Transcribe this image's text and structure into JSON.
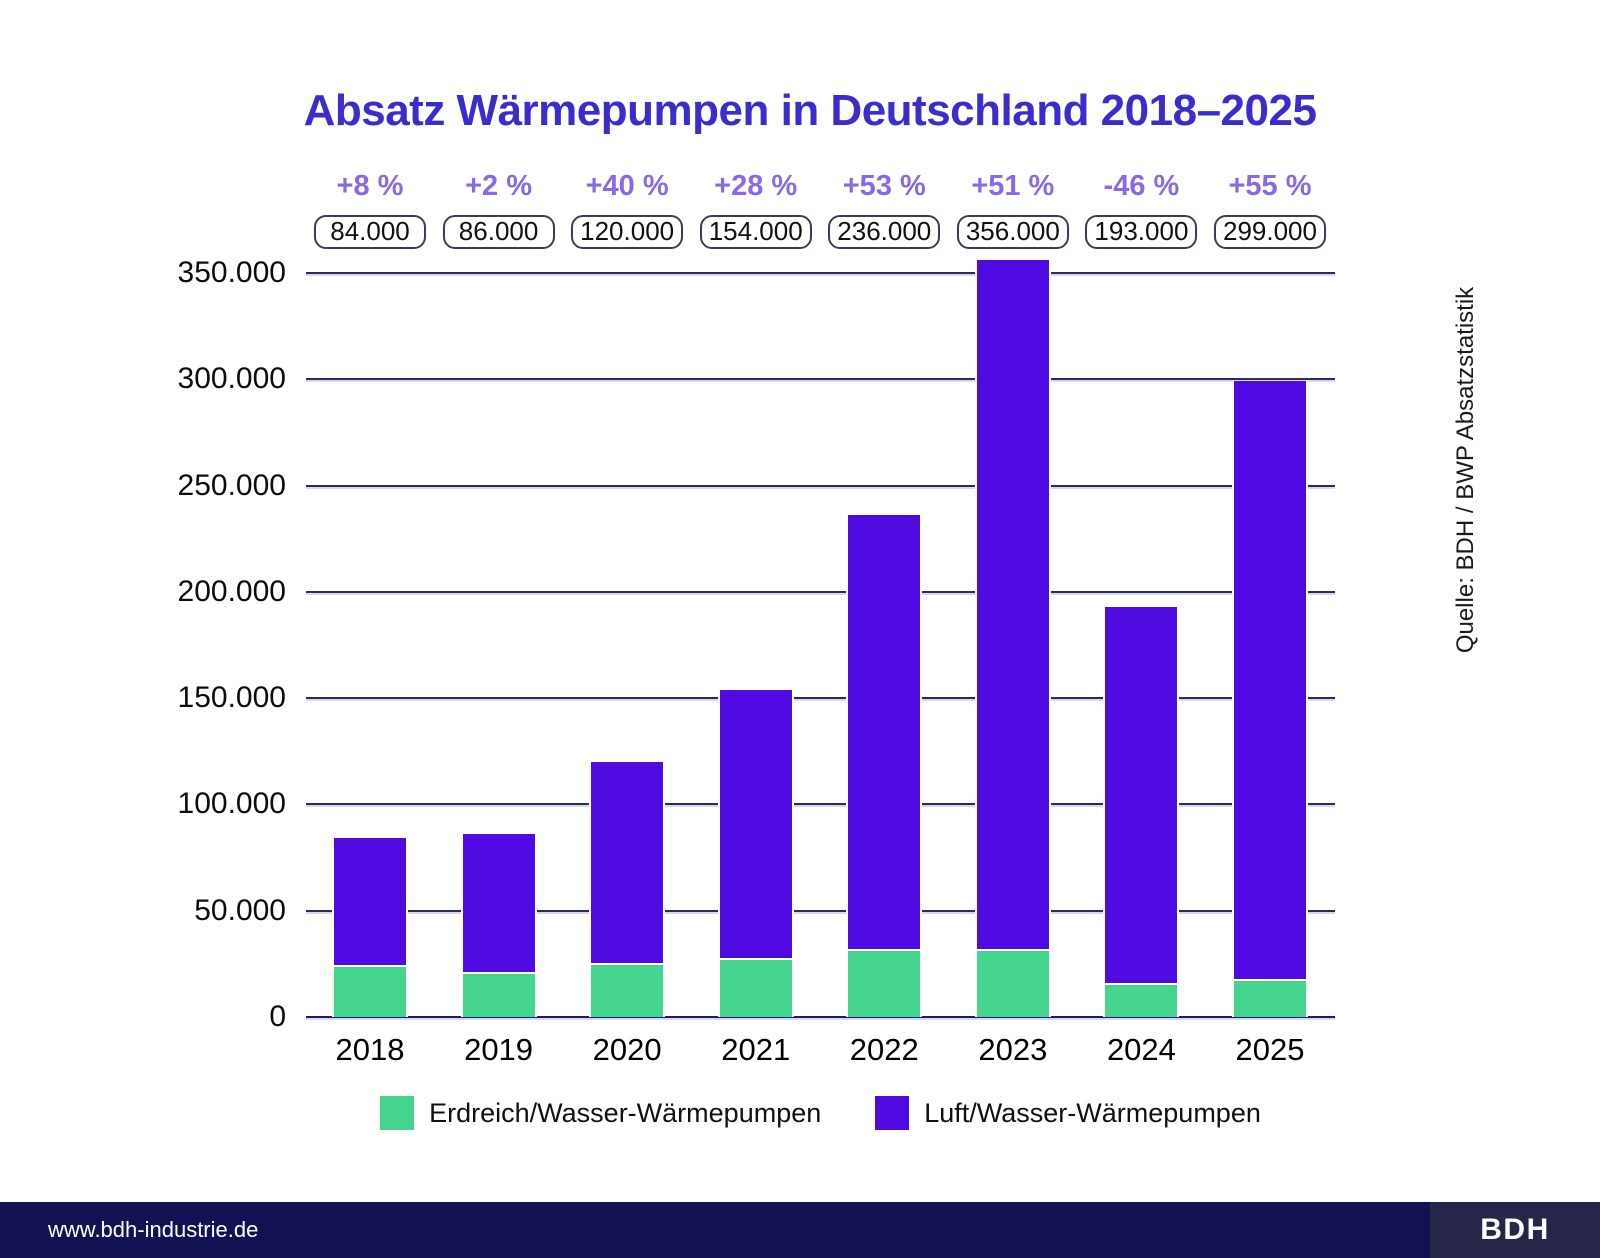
{
  "page": {
    "title": "Absatz Wärmepumpen in Deutschland 2018–2025",
    "source_note": "Quelle: BDH / BWP Absatzstatistik",
    "footer": {
      "website": "www.bdh-industrie.de",
      "logo_text": "BDH"
    }
  },
  "colors": {
    "title": "#3a2ccd",
    "percent": "#8a68e8",
    "green": "#45d48e",
    "purple": "#4e0ae0",
    "grid": "#2c2c55",
    "grid_highlight": "#d8d8f5",
    "axis": "#1c1c66",
    "box_border": "#3c3c5e",
    "footer_bg": "#121252",
    "footer_logo_bg": "#262648"
  },
  "chart_data": {
    "type": "bar",
    "stacked": true,
    "title": "Absatz Wärmepumpen in Deutschland 2018–2025",
    "categories": [
      "2018",
      "2019",
      "2020",
      "2021",
      "2022",
      "2023",
      "2024",
      "2025"
    ],
    "series": [
      {
        "name": "Erdreich/Wasser-Wärmepumpen",
        "color": "#45d48e",
        "values": [
          23500,
          20000,
          24500,
          27000,
          31000,
          31000,
          15000,
          17000
        ]
      },
      {
        "name": "Luft/Wasser-Wärmepumpen",
        "color": "#4e0ae0",
        "values": [
          60500,
          66000,
          95500,
          127000,
          205000,
          325000,
          178000,
          282000
        ]
      }
    ],
    "totals": [
      84000,
      86000,
      120000,
      154000,
      236000,
      356000,
      193000,
      299000
    ],
    "total_labels": [
      "84.000",
      "86.000",
      "120.000",
      "154.000",
      "236.000",
      "356.000",
      "193.000",
      "299.000"
    ],
    "percent_changes": [
      "+8 %",
      "+2 %",
      "+40 %",
      "+28 %",
      "+53 %",
      "+51 %",
      "-46 %",
      "+55 %"
    ],
    "xlabel": "",
    "ylabel": "",
    "ylim": [
      0,
      350000
    ],
    "grid": true,
    "legend_position": "bottom",
    "yaxis": {
      "ticks": [
        {
          "value": 0,
          "label": "0"
        },
        {
          "value": 50000,
          "label": "50.000"
        },
        {
          "value": 100000,
          "label": "100.000"
        },
        {
          "value": 150000,
          "label": "150.000"
        },
        {
          "value": 200000,
          "label": "200.000"
        },
        {
          "value": 250000,
          "label": "250.000"
        },
        {
          "value": 300000,
          "label": "300.000"
        },
        {
          "value": 350000,
          "label": "350.000"
        }
      ]
    }
  }
}
